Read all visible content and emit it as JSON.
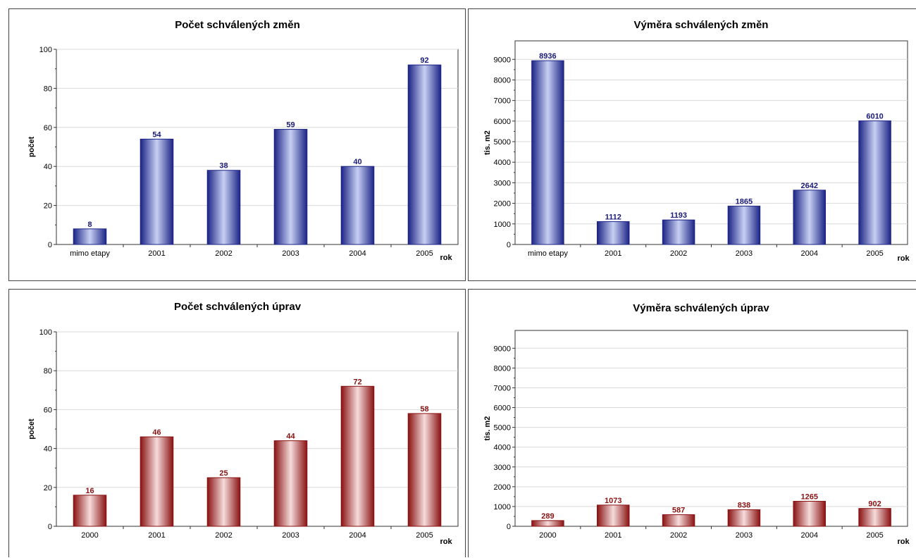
{
  "colors": {
    "blue": "#1c2486",
    "blue_light": "#c7d0f2",
    "blue_label": "#1a1a7a",
    "red": "#8a1212",
    "red_light": "#f6dcdc",
    "red_label": "#8a1212"
  },
  "chart_data": [
    {
      "type": "bar",
      "title": "Počet schválených změn",
      "xlabel": "rok",
      "ylabel": "počet",
      "categories": [
        "mimo etapy",
        "2001",
        "2002",
        "2003",
        "2004",
        "2005"
      ],
      "values": [
        8,
        54,
        38,
        59,
        40,
        92
      ],
      "ylim": [
        0,
        100
      ],
      "yticks": [
        0,
        20,
        40,
        60,
        80,
        100
      ],
      "color": "blue",
      "grid": true
    },
    {
      "type": "bar",
      "title": "Výměra schválených změn",
      "xlabel": "rok",
      "ylabel": "tis. m2",
      "categories": [
        "mimo etapy",
        "2001",
        "2002",
        "2003",
        "2004",
        "2005"
      ],
      "values": [
        8936,
        1112,
        1193,
        1865,
        2642,
        6010
      ],
      "ylim": [
        0,
        9900
      ],
      "yticks": [
        0,
        1000,
        2000,
        3000,
        4000,
        5000,
        6000,
        7000,
        8000,
        9000
      ],
      "color": "blue",
      "grid": true
    },
    {
      "type": "bar",
      "title": "Počet schválených úprav",
      "xlabel": "rok",
      "ylabel": "počet",
      "categories": [
        "2000",
        "2001",
        "2002",
        "2003",
        "2004",
        "2005"
      ],
      "values": [
        16,
        46,
        25,
        44,
        72,
        58
      ],
      "ylim": [
        0,
        100
      ],
      "yticks": [
        0,
        20,
        40,
        60,
        80,
        100
      ],
      "color": "red",
      "grid": true
    },
    {
      "type": "bar",
      "title": "Výměra schválených úprav",
      "xlabel": "rok",
      "ylabel": "tis. m2",
      "categories": [
        "2000",
        "2001",
        "2002",
        "2003",
        "2004",
        "2005"
      ],
      "values": [
        289,
        1073,
        587,
        838,
        1265,
        902
      ],
      "ylim": [
        0,
        9900
      ],
      "yticks": [
        0,
        1000,
        2000,
        3000,
        4000,
        5000,
        6000,
        7000,
        8000,
        9000
      ],
      "color": "red",
      "grid": true
    }
  ]
}
